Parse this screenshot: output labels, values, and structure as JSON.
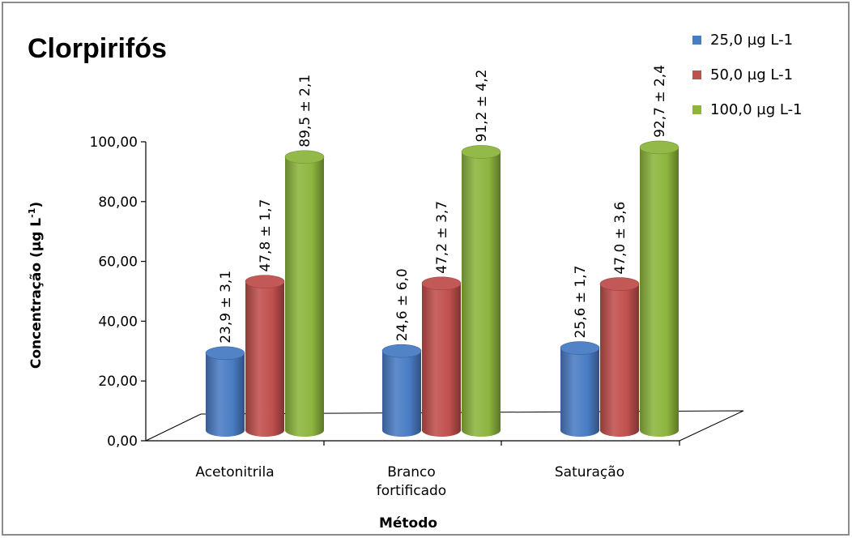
{
  "chart_data": {
    "type": "bar",
    "style": "3d-cylinder",
    "title": "Clorpirifós",
    "xlabel": "Método",
    "ylabel": "Concentração (µg L",
    "ylabel_sup": "-1",
    "ylabel_end": ")",
    "categories": [
      "Acetonitrila",
      "Branco fortificado",
      "Saturação"
    ],
    "ylim": [
      0,
      100
    ],
    "yticks": [
      "0,00",
      "20,00",
      "40,00",
      "60,00",
      "80,00",
      "100,00"
    ],
    "legend_position": "top-right",
    "series": [
      {
        "name": "25,0 µg L-1",
        "color": "#4a7cc4",
        "values": [
          23.9,
          24.6,
          25.6
        ],
        "labels": [
          "23,9 ± 3,1",
          "24,6 ± 6,0",
          "25,6 ± 1,7"
        ]
      },
      {
        "name": "50,0 µg L-1",
        "color": "#c0504d",
        "values": [
          47.8,
          47.2,
          47.0
        ],
        "labels": [
          "47,8 ± 1,7",
          "47,2 ± 3,7",
          "47,0 ± 3,6"
        ]
      },
      {
        "name": "100,0 µg L-1",
        "color": "#8db53e",
        "values": [
          89.5,
          91.2,
          92.7
        ],
        "labels": [
          "89,5 ± 2,1",
          "91,2 ± 4,2",
          "92,7 ± 2,4"
        ]
      }
    ]
  }
}
